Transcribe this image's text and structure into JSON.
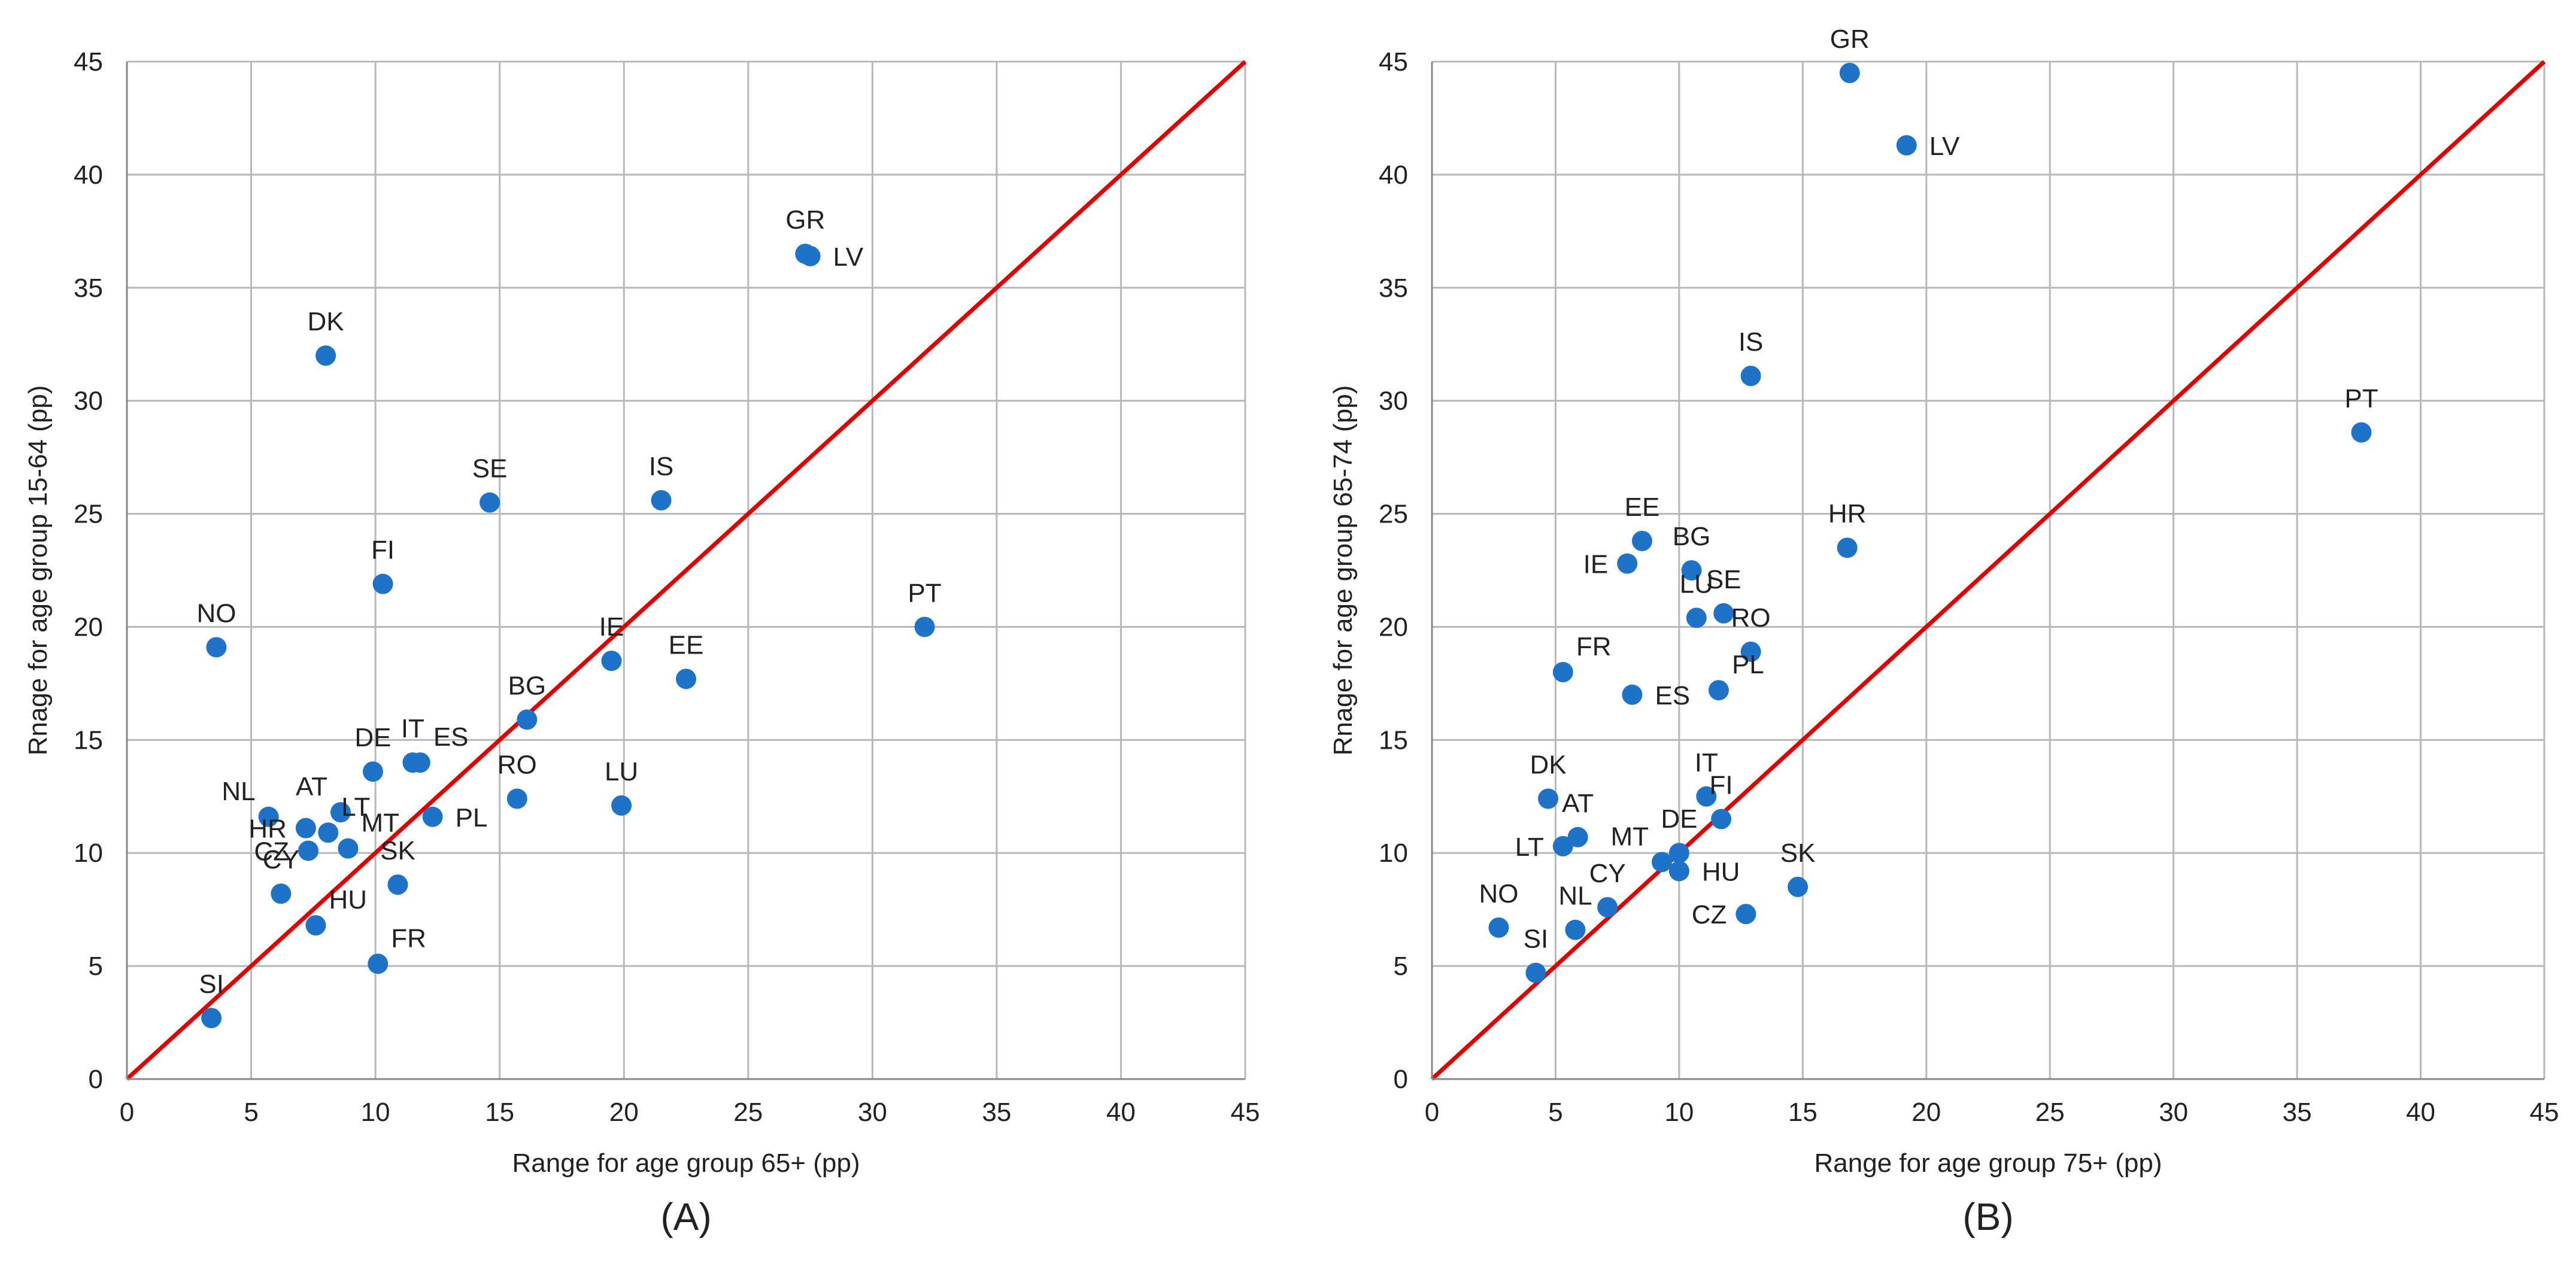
{
  "chart_data": [
    {
      "type": "scatter",
      "panel_label": "(A)",
      "xlabel": "Range for age group 65+ (pp)",
      "ylabel": "Rnage for age group 15-64 (pp)",
      "xlim": [
        0,
        45
      ],
      "ylim": [
        0,
        45
      ],
      "xticks": [
        0,
        5,
        10,
        15,
        20,
        25,
        30,
        35,
        40,
        45
      ],
      "yticks": [
        0,
        5,
        10,
        15,
        20,
        25,
        30,
        35,
        40,
        45
      ],
      "grid": true,
      "reference_line": "y = x",
      "points": [
        {
          "label": "GR",
          "x": 27.3,
          "y": 36.5,
          "pos": "n"
        },
        {
          "label": "LV",
          "x": 27.5,
          "y": 36.4,
          "pos": "e"
        },
        {
          "label": "DK",
          "x": 8.0,
          "y": 32.0,
          "pos": "n"
        },
        {
          "label": "SE",
          "x": 14.6,
          "y": 25.5,
          "pos": "n"
        },
        {
          "label": "IS",
          "x": 21.5,
          "y": 25.6,
          "pos": "n"
        },
        {
          "label": "FI",
          "x": 10.3,
          "y": 21.9,
          "pos": "n"
        },
        {
          "label": "PT",
          "x": 32.1,
          "y": 20.0,
          "pos": "n"
        },
        {
          "label": "NO",
          "x": 3.6,
          "y": 19.1,
          "pos": "n"
        },
        {
          "label": "IE",
          "x": 19.5,
          "y": 18.5,
          "pos": "n"
        },
        {
          "label": "EE",
          "x": 22.5,
          "y": 17.7,
          "pos": "n"
        },
        {
          "label": "BG",
          "x": 16.1,
          "y": 15.9,
          "pos": "n"
        },
        {
          "label": "IT",
          "x": 11.5,
          "y": 14.0,
          "pos": "n"
        },
        {
          "label": "ES",
          "x": 11.8,
          "y": 14.0,
          "pos": "ne"
        },
        {
          "label": "DE",
          "x": 9.9,
          "y": 13.6,
          "pos": "n"
        },
        {
          "label": "RO",
          "x": 15.7,
          "y": 12.4,
          "pos": "n"
        },
        {
          "label": "LU",
          "x": 19.9,
          "y": 12.1,
          "pos": "n"
        },
        {
          "label": "NL",
          "x": 5.7,
          "y": 11.6,
          "pos": "nw"
        },
        {
          "label": "AT",
          "x": 8.6,
          "y": 11.8,
          "pos": "nw"
        },
        {
          "label": "LT",
          "x": 8.1,
          "y": 10.9,
          "pos": "ne"
        },
        {
          "label": "PL",
          "x": 12.3,
          "y": 11.6,
          "pos": "e"
        },
        {
          "label": "HR",
          "x": 7.2,
          "y": 11.1,
          "pos": "w"
        },
        {
          "label": "CZ",
          "x": 7.3,
          "y": 10.1,
          "pos": "w"
        },
        {
          "label": "MT",
          "x": 8.9,
          "y": 10.2,
          "pos": "ne"
        },
        {
          "label": "SK",
          "x": 10.9,
          "y": 8.6,
          "pos": "n"
        },
        {
          "label": "CY",
          "x": 6.2,
          "y": 8.2,
          "pos": "n"
        },
        {
          "label": "HU",
          "x": 7.6,
          "y": 6.8,
          "pos": "ne"
        },
        {
          "label": "FR",
          "x": 10.1,
          "y": 5.1,
          "pos": "ne"
        },
        {
          "label": "SI",
          "x": 3.4,
          "y": 2.7,
          "pos": "n"
        }
      ]
    },
    {
      "type": "scatter",
      "panel_label": "(B)",
      "xlabel": "Range for age group 75+ (pp)",
      "ylabel": "Rnage for age group 65-74 (pp)",
      "xlim": [
        0,
        45
      ],
      "ylim": [
        0,
        45
      ],
      "xticks": [
        0,
        5,
        10,
        15,
        20,
        25,
        30,
        35,
        40,
        45
      ],
      "yticks": [
        0,
        5,
        10,
        15,
        20,
        25,
        30,
        35,
        40,
        45
      ],
      "grid": true,
      "reference_line": "y = x",
      "points": [
        {
          "label": "GR",
          "x": 16.9,
          "y": 44.5,
          "pos": "n"
        },
        {
          "label": "LV",
          "x": 19.2,
          "y": 41.3,
          "pos": "e"
        },
        {
          "label": "IS",
          "x": 12.9,
          "y": 31.1,
          "pos": "n"
        },
        {
          "label": "PT",
          "x": 37.6,
          "y": 28.6,
          "pos": "n"
        },
        {
          "label": "EE",
          "x": 8.5,
          "y": 23.8,
          "pos": "n"
        },
        {
          "label": "HR",
          "x": 16.8,
          "y": 23.5,
          "pos": "n"
        },
        {
          "label": "IE",
          "x": 7.9,
          "y": 22.8,
          "pos": "w"
        },
        {
          "label": "BG",
          "x": 10.5,
          "y": 22.5,
          "pos": "n"
        },
        {
          "label": "SE",
          "x": 11.8,
          "y": 20.6,
          "pos": "n"
        },
        {
          "label": "LU",
          "x": 10.7,
          "y": 20.4,
          "pos": "n"
        },
        {
          "label": "RO",
          "x": 12.9,
          "y": 18.9,
          "pos": "n"
        },
        {
          "label": "FR",
          "x": 5.3,
          "y": 18.0,
          "pos": "ne"
        },
        {
          "label": "PL",
          "x": 11.6,
          "y": 17.2,
          "pos": "ne"
        },
        {
          "label": "ES",
          "x": 8.1,
          "y": 17.0,
          "pos": "e"
        },
        {
          "label": "IT",
          "x": 11.1,
          "y": 12.5,
          "pos": "n"
        },
        {
          "label": "FI",
          "x": 11.7,
          "y": 11.5,
          "pos": "n"
        },
        {
          "label": "DK",
          "x": 4.7,
          "y": 12.4,
          "pos": "n"
        },
        {
          "label": "AT",
          "x": 5.9,
          "y": 10.7,
          "pos": "n"
        },
        {
          "label": "LT",
          "x": 5.3,
          "y": 10.3,
          "pos": "w"
        },
        {
          "label": "DE",
          "x": 10.0,
          "y": 10.0,
          "pos": "n"
        },
        {
          "label": "MT",
          "x": 9.3,
          "y": 9.6,
          "pos": "nw"
        },
        {
          "label": "HU",
          "x": 10.0,
          "y": 9.2,
          "pos": "e"
        },
        {
          "label": "SK",
          "x": 14.8,
          "y": 8.5,
          "pos": "n"
        },
        {
          "label": "CY",
          "x": 7.1,
          "y": 7.6,
          "pos": "n"
        },
        {
          "label": "CZ",
          "x": 12.7,
          "y": 7.3,
          "pos": "w"
        },
        {
          "label": "NO",
          "x": 2.7,
          "y": 6.7,
          "pos": "n"
        },
        {
          "label": "NL",
          "x": 5.8,
          "y": 6.6,
          "pos": "n"
        },
        {
          "label": "SI",
          "x": 4.2,
          "y": 4.7,
          "pos": "n"
        }
      ]
    }
  ],
  "colors": {
    "point": "#1e73c8",
    "reference_line": "#e00000",
    "grid": "#b8b8b8",
    "axis": "#888888",
    "text": "#222222"
  }
}
